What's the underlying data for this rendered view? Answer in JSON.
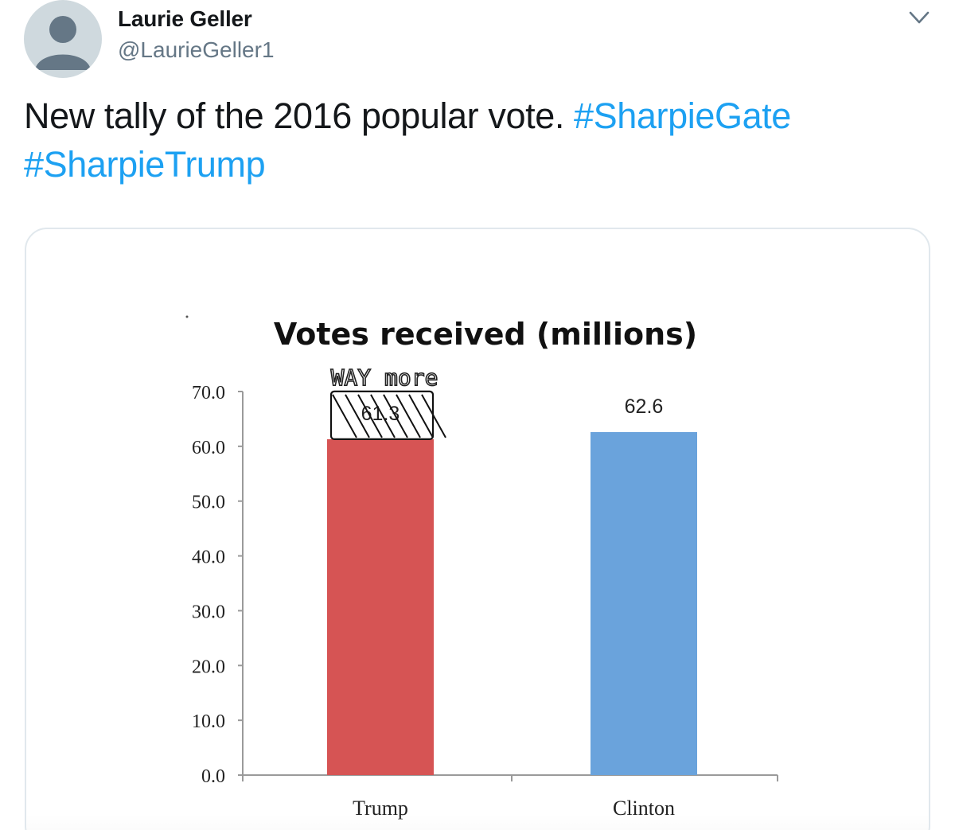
{
  "author": {
    "name": "Laurie Geller",
    "handle": "@LaurieGeller1"
  },
  "tweet": {
    "text": "New tally of the 2016 popular vote.",
    "hashtags": [
      "#SharpieGate",
      "#SharpieTrump"
    ]
  },
  "icons": {
    "avatar": "default-avatar-icon",
    "menu": "chevron-down-icon"
  },
  "colors": {
    "hashtag": "#1da1f2",
    "trump_bar": "#d65454",
    "clinton_bar": "#6aa3dc"
  },
  "chart_data": {
    "type": "bar",
    "title": "Votes received (millions)",
    "categories": [
      "Trump",
      "Clinton"
    ],
    "values": [
      61.3,
      62.6
    ],
    "data_labels": [
      "61.3",
      "62.6"
    ],
    "ylim": [
      0,
      70
    ],
    "yticks": [
      "0.0",
      "10.0",
      "20.0",
      "30.0",
      "40.0",
      "50.0",
      "60.0",
      "70.0"
    ],
    "xlabel": "",
    "ylabel": "",
    "grid": false,
    "annotation": "WAY more"
  }
}
